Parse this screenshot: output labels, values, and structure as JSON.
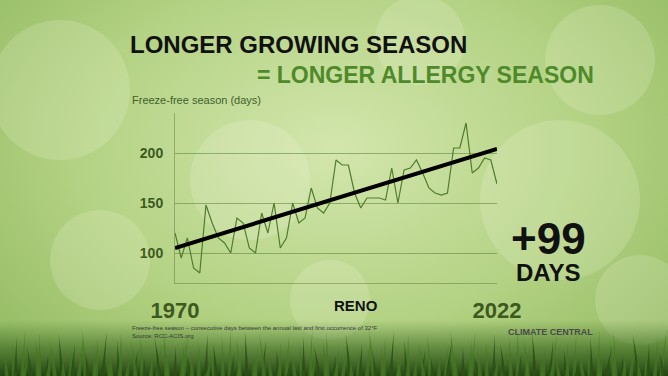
{
  "chart_data": {
    "type": "line",
    "title": "LONGER GROWING SEASON",
    "subtitle": "= LONGER ALLERGY SEASON",
    "y_title": "Freeze-free season (days)",
    "location": "RENO",
    "x": [
      1970,
      1971,
      1972,
      1973,
      1974,
      1975,
      1976,
      1977,
      1978,
      1979,
      1980,
      1981,
      1982,
      1983,
      1984,
      1985,
      1986,
      1987,
      1988,
      1989,
      1990,
      1991,
      1992,
      1993,
      1994,
      1995,
      1996,
      1997,
      1998,
      1999,
      2000,
      2001,
      2002,
      2003,
      2004,
      2005,
      2006,
      2007,
      2008,
      2009,
      2010,
      2011,
      2012,
      2013,
      2014,
      2015,
      2016,
      2017,
      2018,
      2019,
      2020,
      2021,
      2022
    ],
    "values": [
      120,
      95,
      115,
      85,
      80,
      148,
      130,
      115,
      110,
      100,
      135,
      130,
      105,
      100,
      140,
      120,
      150,
      105,
      115,
      150,
      130,
      135,
      165,
      145,
      140,
      150,
      193,
      188,
      188,
      160,
      145,
      155,
      155,
      155,
      153,
      185,
      150,
      183,
      185,
      193,
      180,
      165,
      160,
      158,
      160,
      205,
      205,
      230,
      180,
      185,
      195,
      193,
      169
    ],
    "color": "#4e7d2c",
    "trend": {
      "x": [
        1970,
        2022
      ],
      "values": [
        105,
        204
      ],
      "color": "#000000"
    },
    "xlim": [
      1970,
      2022
    ],
    "xticks": [
      1970,
      2022
    ],
    "ylim": [
      70,
      240
    ],
    "yticks": [
      100,
      150,
      200
    ],
    "grid": true,
    "annotations": [
      "+99",
      "DAYS"
    ],
    "note": [
      "Freeze-free season – consecutive days between the annual last and first occurrence of 32°F",
      "Source: RCC-ACIS.org"
    ],
    "logo": "CLIMATE CENTRAL"
  }
}
